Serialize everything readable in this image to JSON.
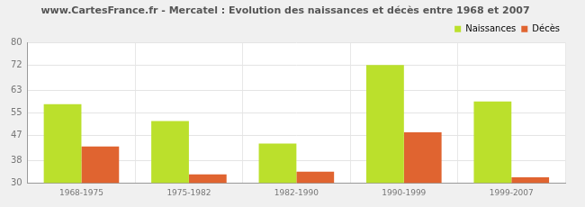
{
  "chart_data": {
    "type": "bar",
    "title": "www.CartesFrance.fr - Mercatel : Evolution des naissances et décès entre 1968 et 2007",
    "categories": [
      "1968-1975",
      "1975-1982",
      "1982-1990",
      "1990-1999",
      "1999-2007"
    ],
    "series": [
      {
        "name": "Naissances",
        "color": "#bbe02c",
        "values": [
          58,
          52,
          44,
          72,
          59
        ]
      },
      {
        "name": "Décès",
        "color": "#e06430",
        "values": [
          43,
          33,
          34,
          48,
          32
        ]
      }
    ],
    "ylim": [
      30,
      80
    ],
    "yticks": [
      30,
      38,
      47,
      55,
      63,
      72,
      80
    ],
    "grid": true,
    "legend": "upper right"
  }
}
